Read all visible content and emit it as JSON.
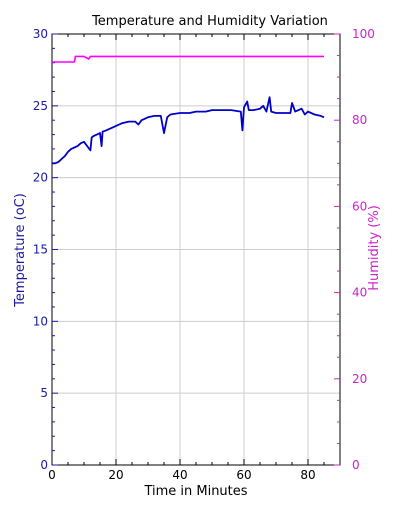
{
  "chart_data": {
    "type": "line",
    "title": "Temperature and Humidity Variation",
    "xlabel": "Time in Minutes",
    "ylabel_left": "Temperature (oC)",
    "ylabel_right": "Humidity (%)",
    "xlim": [
      0,
      90
    ],
    "ylim_left": [
      0,
      30
    ],
    "ylim_right": [
      0,
      100
    ],
    "x_ticks": [
      "0",
      "20",
      "40",
      "60",
      "80"
    ],
    "x_tick_values": [
      0,
      20,
      40,
      60,
      80
    ],
    "y_left_ticks": [
      "0",
      "5",
      "10",
      "15",
      "20",
      "25",
      "30"
    ],
    "y_left_tick_values": [
      0,
      5,
      10,
      15,
      20,
      25,
      30
    ],
    "y_right_ticks": [
      "0",
      "20",
      "40",
      "60",
      "80",
      "100"
    ],
    "y_right_tick_values": [
      0,
      20,
      40,
      60,
      80,
      100
    ],
    "grid": true,
    "colors": {
      "temperature": "#0000c8",
      "humidity": "#ff00ff",
      "left_axis": "#1a1aa0",
      "right_axis": "#cc22cc",
      "grid": "#cccccc"
    },
    "series": [
      {
        "axis": "left",
        "points": [
          [
            0,
            21.0
          ],
          [
            1,
            21.0
          ],
          [
            2,
            21.1
          ],
          [
            3,
            21.3
          ],
          [
            4,
            21.5
          ],
          [
            5,
            21.8
          ],
          [
            6,
            22.0
          ],
          [
            7,
            22.1
          ],
          [
            8,
            22.2
          ],
          [
            9,
            22.4
          ],
          [
            10,
            22.5
          ],
          [
            11,
            22.2
          ],
          [
            12,
            21.9
          ],
          [
            12.4,
            22.8
          ],
          [
            13,
            22.9
          ],
          [
            14,
            23.0
          ],
          [
            15,
            23.1
          ],
          [
            15.5,
            22.2
          ],
          [
            15.8,
            23.2
          ],
          [
            17,
            23.3
          ],
          [
            18,
            23.4
          ],
          [
            19,
            23.5
          ],
          [
            20,
            23.6
          ],
          [
            22,
            23.8
          ],
          [
            24,
            23.9
          ],
          [
            26,
            23.9
          ],
          [
            27,
            23.7
          ],
          [
            28,
            24.0
          ],
          [
            30,
            24.2
          ],
          [
            32,
            24.3
          ],
          [
            34,
            24.3
          ],
          [
            35,
            23.1
          ],
          [
            36,
            24.2
          ],
          [
            37,
            24.4
          ],
          [
            40,
            24.5
          ],
          [
            43,
            24.5
          ],
          [
            45,
            24.6
          ],
          [
            48,
            24.6
          ],
          [
            50,
            24.7
          ],
          [
            53,
            24.7
          ],
          [
            56,
            24.7
          ],
          [
            59,
            24.6
          ],
          [
            59.5,
            23.3
          ],
          [
            60,
            24.9
          ],
          [
            61,
            25.3
          ],
          [
            61.5,
            24.7
          ],
          [
            63,
            24.7
          ],
          [
            65,
            24.8
          ],
          [
            66,
            25.0
          ],
          [
            67,
            24.6
          ],
          [
            68,
            25.6
          ],
          [
            68.5,
            24.6
          ],
          [
            70,
            24.5
          ],
          [
            73,
            24.5
          ],
          [
            74.5,
            24.5
          ],
          [
            75,
            25.2
          ],
          [
            76,
            24.6
          ],
          [
            78,
            24.8
          ],
          [
            79,
            24.4
          ],
          [
            80,
            24.6
          ],
          [
            82,
            24.4
          ],
          [
            84,
            24.3
          ],
          [
            85,
            24.2
          ]
        ]
      },
      {
        "axis": "right",
        "points": [
          [
            0,
            93.5
          ],
          [
            7,
            93.5
          ],
          [
            7.3,
            94.8
          ],
          [
            10,
            94.8
          ],
          [
            11.5,
            94.2
          ],
          [
            12,
            94.8
          ],
          [
            50,
            94.8
          ],
          [
            85,
            94.8
          ]
        ]
      }
    ]
  }
}
